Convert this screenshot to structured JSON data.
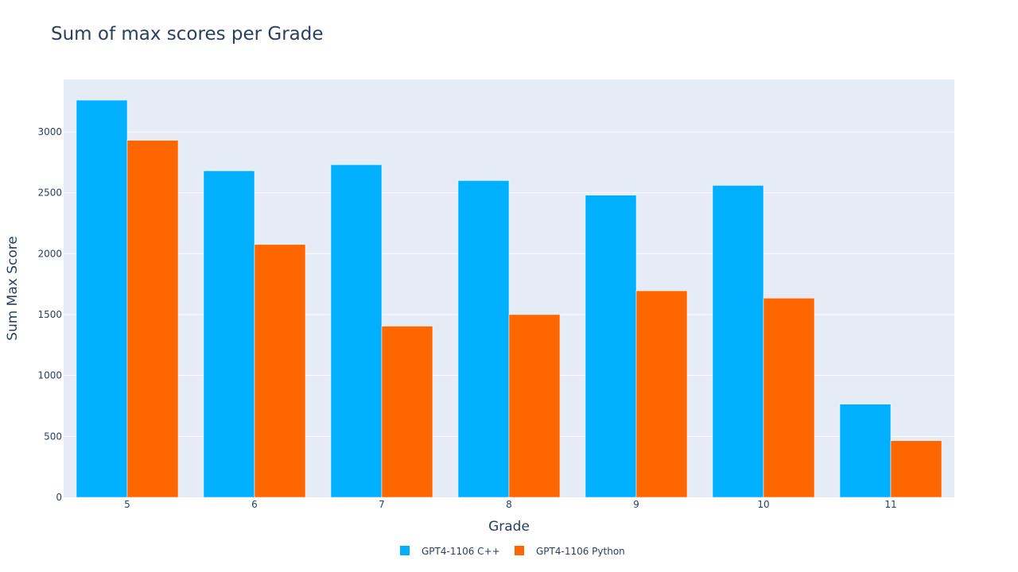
{
  "chart_data": {
    "type": "bar",
    "title": "Sum of max scores per Grade",
    "xlabel": "Grade",
    "ylabel": "Sum Max Score",
    "categories": [
      "5",
      "6",
      "7",
      "8",
      "9",
      "10",
      "11"
    ],
    "series": [
      {
        "name": "GPT4-1106 C++",
        "color": "#00b0ff",
        "values": [
          3260,
          2680,
          2730,
          2600,
          2480,
          2560,
          765
        ]
      },
      {
        "name": "GPT4-1106 Python",
        "color": "#ff6600",
        "values": [
          2930,
          2075,
          1405,
          1500,
          1695,
          1635,
          465
        ]
      }
    ],
    "ylim": [
      0,
      3430
    ],
    "yticks": [
      0,
      500,
      1000,
      1500,
      2000,
      2500,
      3000
    ],
    "grid": true,
    "legend_position": "bottom-center",
    "plot_background": "#e5ecf6",
    "text_color": "#2a3f5f"
  }
}
